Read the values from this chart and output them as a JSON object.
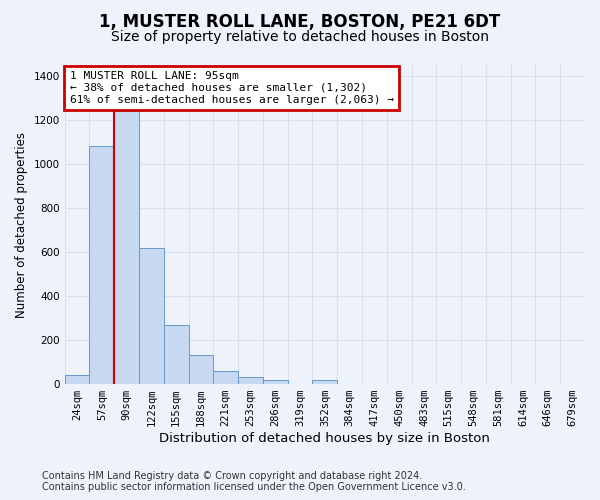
{
  "title": "1, MUSTER ROLL LANE, BOSTON, PE21 6DT",
  "subtitle": "Size of property relative to detached houses in Boston",
  "xlabel": "Distribution of detached houses by size in Boston",
  "ylabel": "Number of detached properties",
  "bar_categories": [
    "24sqm",
    "57sqm",
    "90sqm",
    "122sqm",
    "155sqm",
    "188sqm",
    "221sqm",
    "253sqm",
    "286sqm",
    "319sqm",
    "352sqm",
    "384sqm",
    "417sqm",
    "450sqm",
    "483sqm",
    "515sqm",
    "548sqm",
    "581sqm",
    "614sqm",
    "646sqm",
    "679sqm"
  ],
  "bar_values": [
    40,
    1080,
    1240,
    620,
    270,
    130,
    60,
    30,
    20,
    0,
    20,
    0,
    0,
    0,
    0,
    0,
    0,
    0,
    0,
    0,
    0
  ],
  "bar_color": "#c6d9f0",
  "bar_edge_color": "#6699cc",
  "bar_edge_width": 0.7,
  "red_line_x": 1.5,
  "red_line_color": "#cc0000",
  "ylim": [
    0,
    1450
  ],
  "yticks": [
    0,
    200,
    400,
    600,
    800,
    1000,
    1200,
    1400
  ],
  "annotation_text": "1 MUSTER ROLL LANE: 95sqm\n← 38% of detached houses are smaller (1,302)\n61% of semi-detached houses are larger (2,063) →",
  "annotation_box_color": "#cc0000",
  "footer_line1": "Contains HM Land Registry data © Crown copyright and database right 2024.",
  "footer_line2": "Contains public sector information licensed under the Open Government Licence v3.0.",
  "bg_color": "#eef2fb",
  "plot_bg_color": "#eef2fb",
  "grid_color": "#d8e0f0",
  "title_fontsize": 12,
  "subtitle_fontsize": 10,
  "annotation_fontsize": 8,
  "tick_fontsize": 7.5,
  "ylabel_fontsize": 8.5,
  "xlabel_fontsize": 9.5,
  "footer_fontsize": 7
}
